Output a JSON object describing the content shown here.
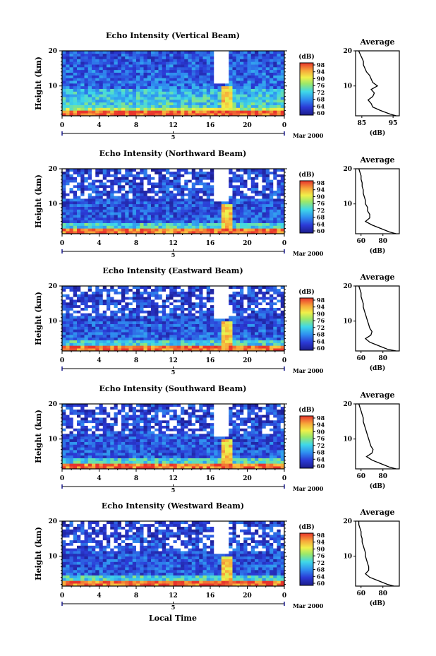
{
  "chart_data": [
    {
      "type": "heatmap",
      "title": "Echo Intensity (Vertical Beam)",
      "ylabel": "Height (km)",
      "xticks": [
        "0",
        "4",
        "8",
        "12",
        "16",
        "20",
        "0"
      ],
      "date_tick": "5",
      "date_label": "Mar 2000",
      "xlim": [
        0,
        24
      ],
      "ylim": [
        1.5,
        20
      ],
      "colorbar": {
        "unit": "(dB)",
        "min": 60,
        "max": 98,
        "ticks": [
          "98",
          "94",
          "90",
          "76",
          "72",
          "68",
          "64",
          "60"
        ]
      },
      "average_profile": {
        "title": "Average",
        "xlabel": "(dB)",
        "xticks": [
          "85",
          "95"
        ],
        "xlim": [
          83,
          97
        ],
        "height": [
          1.5,
          2,
          3,
          4,
          5,
          6,
          7,
          8,
          9,
          10,
          11,
          12,
          13,
          14,
          15,
          16,
          17,
          18,
          19,
          20
        ],
        "db": [
          96,
          94,
          91,
          88.5,
          88,
          87,
          88.5,
          89,
          88,
          90,
          88.5,
          88,
          87.5,
          86.5,
          86,
          85.5,
          85.5,
          85,
          84.5,
          84
        ]
      }
    },
    {
      "type": "heatmap",
      "title": "Echo Intensity (Northward Beam)",
      "ylabel": "Height (km)",
      "xticks": [
        "0",
        "4",
        "8",
        "12",
        "16",
        "20",
        "0"
      ],
      "date_tick": "5",
      "date_label": "Mar 2000",
      "xlim": [
        0,
        24
      ],
      "ylim": [
        1.5,
        20
      ],
      "colorbar": {
        "unit": "(dB)",
        "min": 60,
        "max": 98,
        "ticks": [
          "98",
          "94",
          "90",
          "76",
          "72",
          "68",
          "64",
          "60"
        ]
      },
      "average_profile": {
        "title": "Average",
        "xlabel": "(dB)",
        "xticks": [
          "60",
          "80"
        ],
        "xlim": [
          55,
          95
        ],
        "height": [
          1.5,
          2,
          3,
          4,
          5,
          6,
          7,
          8,
          9,
          10,
          11,
          12,
          13,
          14,
          15,
          16,
          17,
          18,
          19,
          20
        ],
        "db": [
          92,
          86,
          78,
          70,
          64,
          68,
          68,
          66,
          66,
          64,
          64,
          63,
          62,
          62,
          61,
          61,
          60,
          60,
          59,
          58
        ]
      }
    },
    {
      "type": "heatmap",
      "title": "Echo Intensity (Eastward Beam)",
      "ylabel": "Height (km)",
      "xticks": [
        "0",
        "4",
        "8",
        "12",
        "16",
        "20",
        "0"
      ],
      "date_tick": "5",
      "date_label": "Mar 2000",
      "xlim": [
        0,
        24
      ],
      "ylim": [
        1.5,
        20
      ],
      "colorbar": {
        "unit": "(dB)",
        "min": 60,
        "max": 98,
        "ticks": [
          "98",
          "94",
          "90",
          "76",
          "72",
          "68",
          "64",
          "60"
        ]
      },
      "average_profile": {
        "title": "Average",
        "xlabel": "(dB)",
        "xticks": [
          "60",
          "80"
        ],
        "xlim": [
          55,
          95
        ],
        "height": [
          1.5,
          2,
          3,
          4,
          5,
          6,
          7,
          8,
          9,
          10,
          11,
          12,
          13,
          14,
          15,
          16,
          17,
          18,
          19,
          20
        ],
        "db": [
          92,
          84,
          76,
          68,
          64,
          69,
          70,
          68,
          67,
          66,
          65,
          64,
          63,
          62,
          62,
          61,
          60,
          60,
          59,
          58
        ]
      }
    },
    {
      "type": "heatmap",
      "title": "Echo Intensity (Southward Beam)",
      "ylabel": "Height (km)",
      "xticks": [
        "0",
        "4",
        "8",
        "12",
        "16",
        "20",
        "0"
      ],
      "date_tick": "5",
      "date_label": "Mar 2000",
      "xlim": [
        0,
        24
      ],
      "ylim": [
        1.5,
        20
      ],
      "colorbar": {
        "unit": "(dB)",
        "min": 60,
        "max": 98,
        "ticks": [
          "98",
          "94",
          "90",
          "76",
          "72",
          "68",
          "64",
          "60"
        ]
      },
      "average_profile": {
        "title": "Average",
        "xlabel": "(dB)",
        "xticks": [
          "60",
          "80"
        ],
        "xlim": [
          55,
          95
        ],
        "height": [
          1.5,
          2,
          3,
          4,
          5,
          6,
          7,
          8,
          9,
          10,
          11,
          12,
          13,
          14,
          15,
          16,
          17,
          18,
          19,
          20
        ],
        "db": [
          92,
          86,
          78,
          70,
          65,
          70,
          71,
          69,
          68,
          67,
          66,
          65,
          64,
          63,
          62,
          62,
          61,
          60,
          59,
          58
        ]
      }
    },
    {
      "type": "heatmap",
      "title": "Echo Intensity (Westward Beam)",
      "ylabel": "Height (km)",
      "xticks": [
        "0",
        "4",
        "8",
        "12",
        "16",
        "20",
        "0"
      ],
      "date_tick": "5",
      "date_label": "Mar 2000",
      "xlim": [
        0,
        24
      ],
      "ylim": [
        1.5,
        20
      ],
      "colorbar": {
        "unit": "(dB)",
        "min": 60,
        "max": 98,
        "ticks": [
          "98",
          "94",
          "90",
          "76",
          "72",
          "68",
          "64",
          "60"
        ]
      },
      "average_profile": {
        "title": "Average",
        "xlabel": "(dB)",
        "xticks": [
          "60",
          "80"
        ],
        "xlim": [
          55,
          95
        ],
        "height": [
          1.5,
          2,
          3,
          4,
          5,
          6,
          7,
          8,
          9,
          10,
          11,
          12,
          13,
          14,
          15,
          16,
          17,
          18,
          19,
          20
        ],
        "db": [
          90,
          84,
          76,
          68,
          64,
          67,
          67,
          66,
          65,
          64,
          64,
          63,
          62,
          61,
          61,
          60,
          60,
          59,
          58,
          58
        ]
      }
    }
  ],
  "footer": {
    "xlabel": "Local Time"
  }
}
